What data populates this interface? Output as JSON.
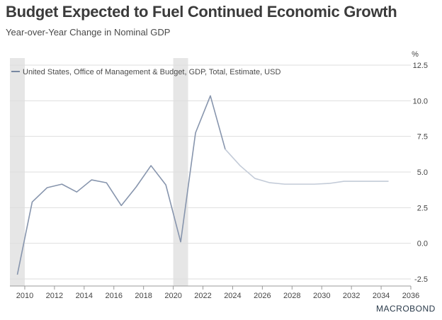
{
  "title": "Budget Expected to Fuel Continued Economic Growth",
  "subtitle": "Year-over-Year Change in Nominal GDP",
  "brand": "MACROBOND",
  "chart_data": {
    "type": "line",
    "unit": "%",
    "xlim": [
      2009,
      2036
    ],
    "ylim": [
      -2.5,
      12.5
    ],
    "xticks": [
      2010,
      2012,
      2014,
      2016,
      2018,
      2020,
      2022,
      2024,
      2026,
      2028,
      2030,
      2032,
      2034,
      2036
    ],
    "yticks": [
      -2.5,
      0.0,
      2.5,
      5.0,
      7.5,
      10.0,
      12.5
    ],
    "ytick_labels": [
      "-2.5",
      "0.0",
      "2.5",
      "5.0",
      "7.5",
      "10.0",
      "12.5"
    ],
    "grid": "horizontal",
    "legend_position": "top-left",
    "shaded_periods": [
      [
        2009.0,
        2010.0
      ],
      [
        2020.0,
        2021.0
      ]
    ],
    "series": [
      {
        "name": "United States, Office of Management & Budget, GDP, Total, Estimate, USD",
        "color": "#8795ad",
        "estimate_color": "#c3cbd8",
        "estimate_from": 2023.5,
        "x": [
          2009.5,
          2010.5,
          2011.5,
          2012.5,
          2013.5,
          2014.5,
          2015.5,
          2016.5,
          2017.5,
          2018.5,
          2019.5,
          2020.5,
          2021.5,
          2022.5,
          2023.5,
          2024.5,
          2025.5,
          2026.5,
          2027.5,
          2028.5,
          2029.5,
          2030.5,
          2031.5,
          2032.5,
          2033.5,
          2034.5
        ],
        "values": [
          -2.2,
          2.9,
          3.9,
          4.15,
          3.6,
          4.45,
          4.25,
          2.65,
          3.95,
          5.45,
          4.1,
          0.1,
          7.75,
          10.35,
          6.6,
          5.45,
          4.55,
          4.25,
          4.15,
          4.15,
          4.15,
          4.2,
          4.35,
          4.35,
          4.35,
          4.35
        ]
      }
    ]
  }
}
